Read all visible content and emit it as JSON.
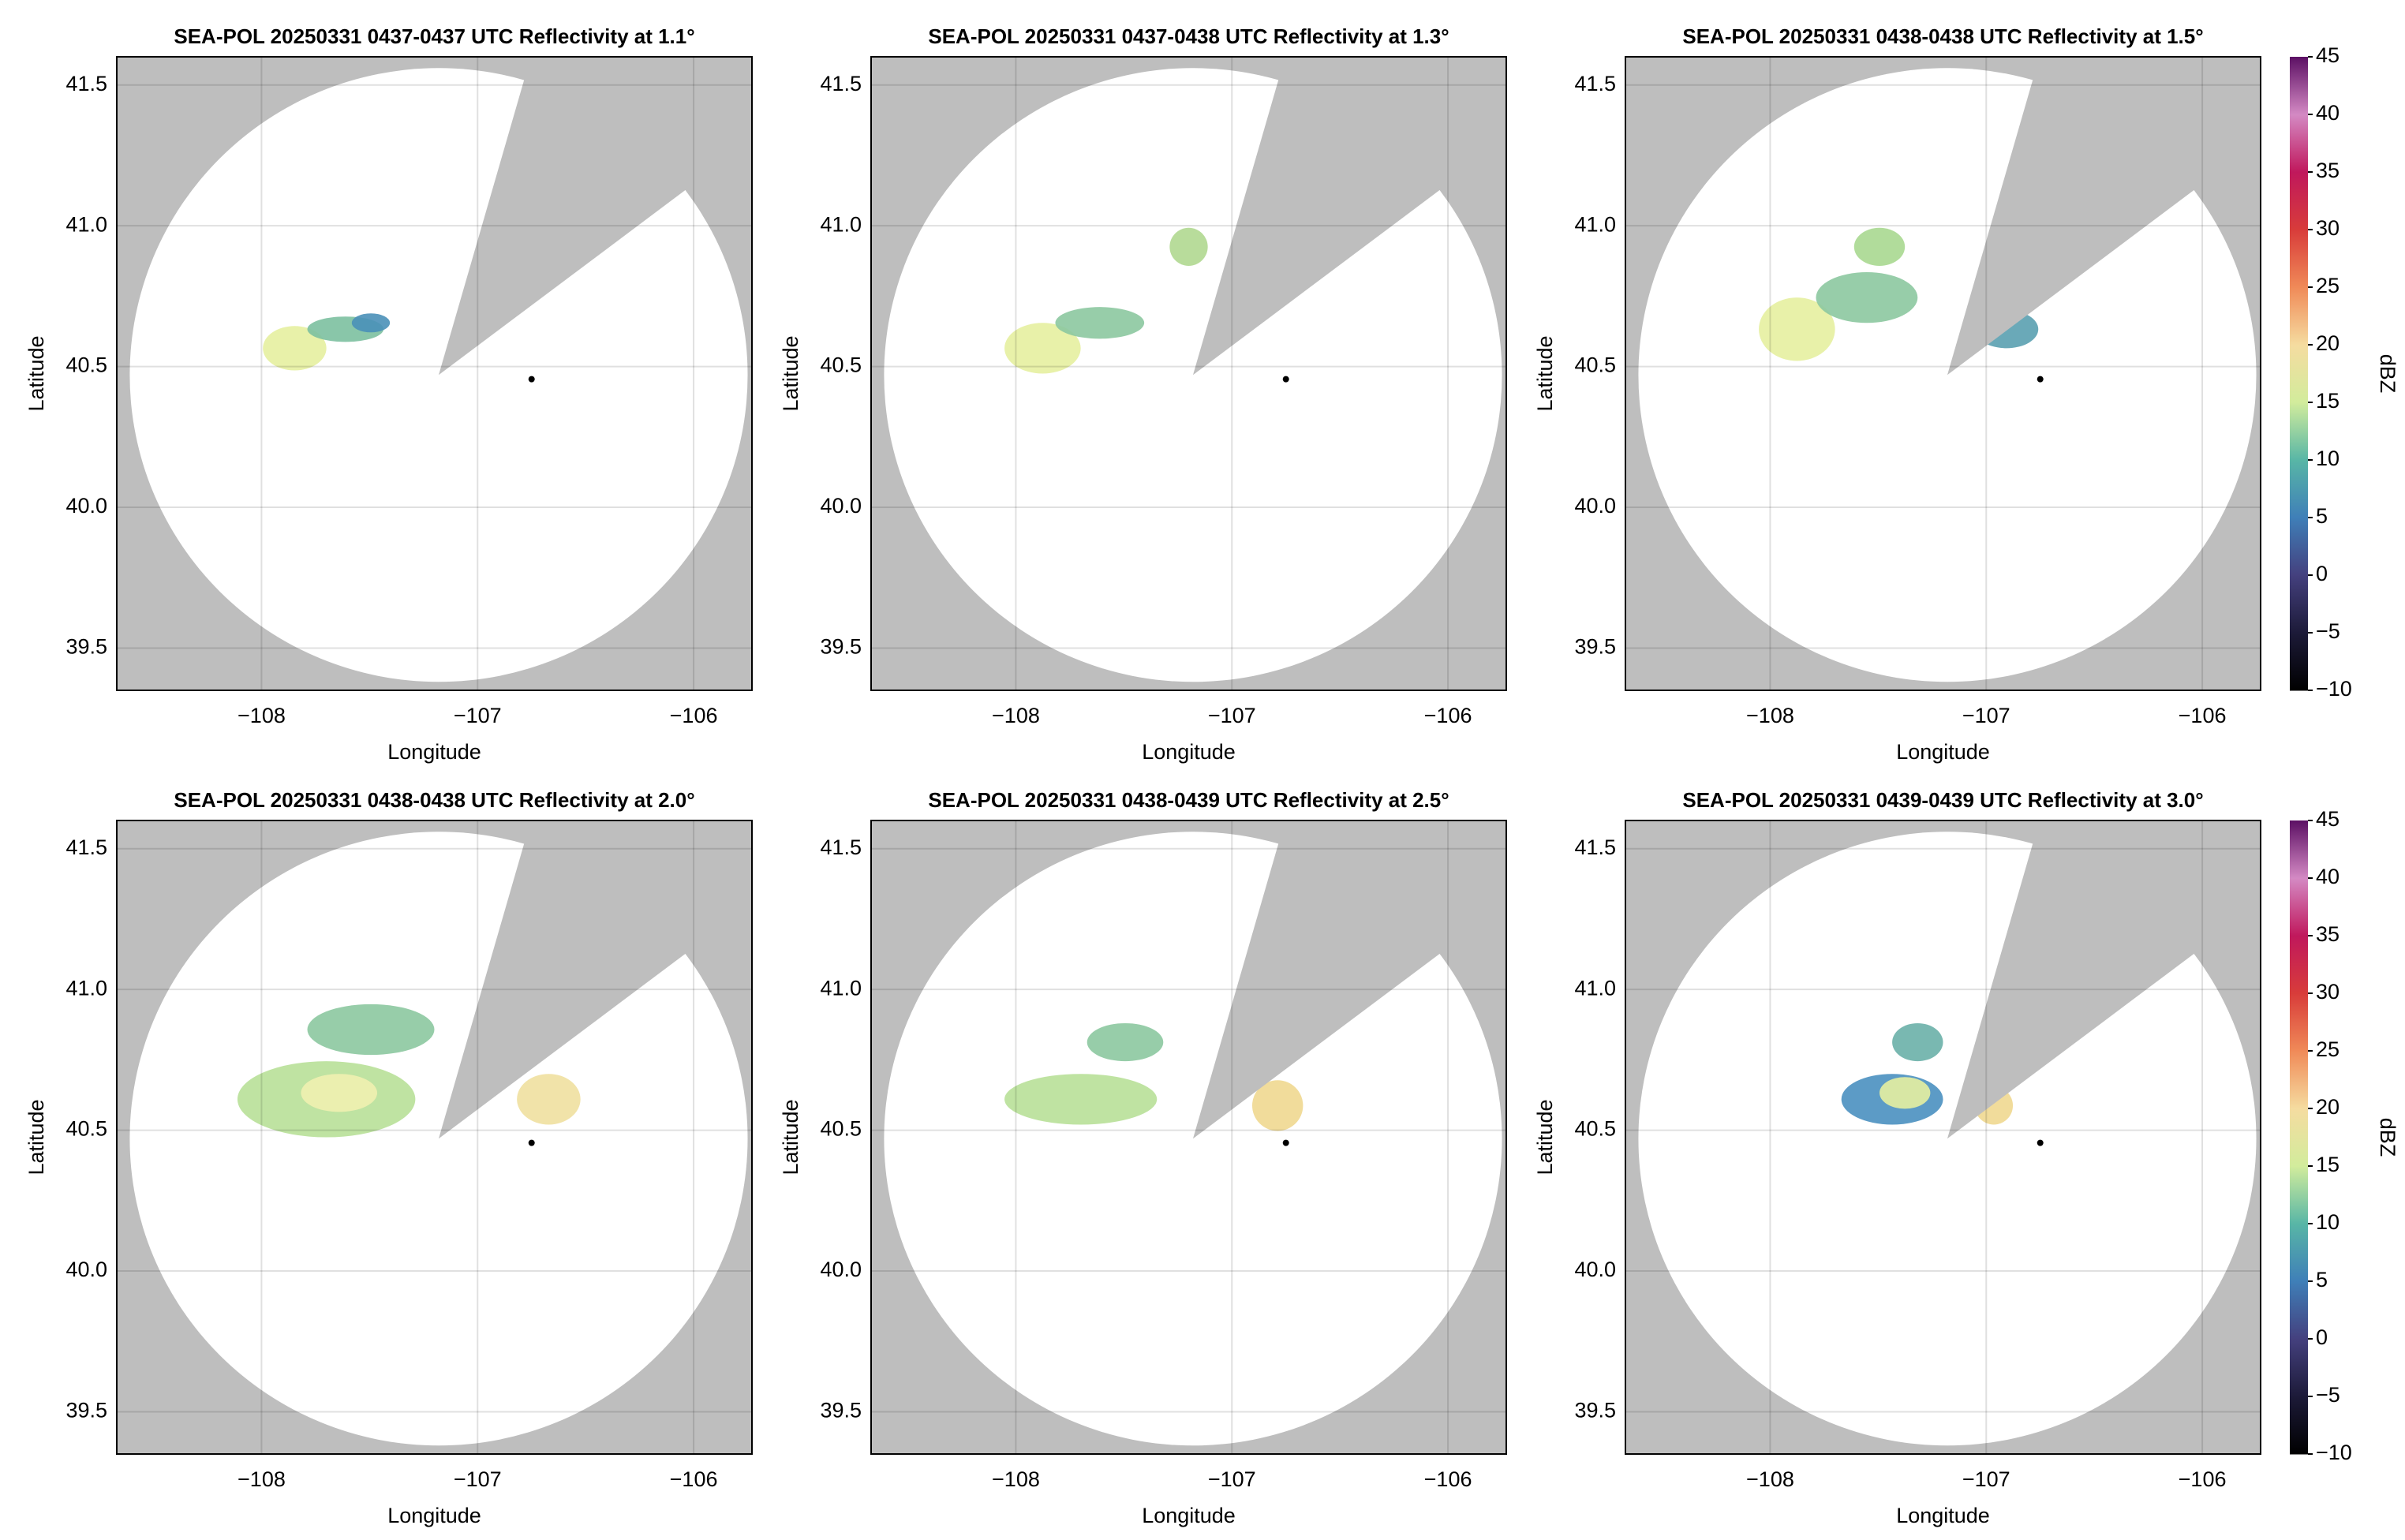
{
  "chart_data": [
    {
      "type": "radar",
      "title": "SEA-POL 20250331 0437-0437 UTC Reflectivity at 1.1°",
      "x_label": "Longitude",
      "y_label": "Latitude",
      "xlim": [
        -108.67,
        -105.73
      ],
      "ylim": [
        39.35,
        41.6
      ],
      "xticks": [
        {
          "value": -108,
          "label": "−108"
        },
        {
          "value": -107,
          "label": "−107"
        },
        {
          "value": -106,
          "label": "−106"
        }
      ],
      "yticks": [
        39.5,
        {
          "value": 40.0,
          "label": "40.0"
        },
        40.5,
        {
          "value": 41.0,
          "label": "41.0"
        },
        41.5
      ],
      "grid": true,
      "coverage": {
        "center": [
          -107.18,
          40.47
        ],
        "radius": [
          1.43,
          1.09
        ],
        "blocked_edges": [
          [
            -106.78,
            41.53
          ],
          [
            -106.05,
            41.12
          ]
        ]
      },
      "marker": [
        -106.75,
        40.455
      ]
    },
    {
      "type": "radar",
      "title": "SEA-POL 20250331 0437-0438 UTC Reflectivity at 1.3°",
      "x_label": "Longitude",
      "y_label": "Latitude",
      "xlim": [
        -108.67,
        -105.73
      ],
      "ylim": [
        39.35,
        41.6
      ],
      "xticks": [
        {
          "value": -108,
          "label": "−108"
        },
        {
          "value": -107,
          "label": "−107"
        },
        {
          "value": -106,
          "label": "−106"
        }
      ],
      "yticks": [
        39.5,
        {
          "value": 40.0,
          "label": "40.0"
        },
        40.5,
        {
          "value": 41.0,
          "label": "41.0"
        },
        41.5
      ],
      "grid": true,
      "coverage": {
        "center": [
          -107.18,
          40.47
        ],
        "radius": [
          1.43,
          1.09
        ],
        "blocked_edges": [
          [
            -106.78,
            41.53
          ],
          [
            -106.05,
            41.12
          ]
        ]
      },
      "marker": [
        -106.75,
        40.455
      ]
    },
    {
      "type": "radar",
      "title": "SEA-POL 20250331 0438-0438 UTC Reflectivity at 1.5°",
      "x_label": "Longitude",
      "y_label": "Latitude",
      "xlim": [
        -108.67,
        -105.73
      ],
      "ylim": [
        39.35,
        41.6
      ],
      "xticks": [
        {
          "value": -108,
          "label": "−108"
        },
        {
          "value": -107,
          "label": "−107"
        },
        {
          "value": -106,
          "label": "−106"
        }
      ],
      "yticks": [
        39.5,
        {
          "value": 40.0,
          "label": "40.0"
        },
        40.5,
        {
          "value": 41.0,
          "label": "41.0"
        },
        41.5
      ],
      "grid": true,
      "coverage": {
        "center": [
          -107.18,
          40.47
        ],
        "radius": [
          1.43,
          1.09
        ],
        "blocked_edges": [
          [
            -106.78,
            41.53
          ],
          [
            -106.05,
            41.12
          ]
        ]
      },
      "marker": [
        -106.75,
        40.455
      ],
      "colorbar": {
        "label": "dBZ",
        "lim": [
          -10,
          45
        ],
        "ticks": [
          {
            "value": -10,
            "label": "−10"
          },
          {
            "value": -5,
            "label": "−5"
          },
          0,
          5,
          10,
          15,
          20,
          25,
          30,
          35,
          40,
          45
        ],
        "colors": [
          "#000000",
          "#1c1a38",
          "#44407e",
          "#3f7fb8",
          "#58b6a6",
          "#d2ec9c",
          "#f5dca0",
          "#f08a58",
          "#d83c3a",
          "#c0185c",
          "#d48ac4",
          "#5c1064"
        ]
      }
    },
    {
      "type": "radar",
      "title": "SEA-POL 20250331 0438-0438 UTC Reflectivity at 2.0°",
      "x_label": "Longitude",
      "y_label": "Latitude",
      "xlim": [
        -108.67,
        -105.73
      ],
      "ylim": [
        39.35,
        41.6
      ],
      "xticks": [
        {
          "value": -108,
          "label": "−108"
        },
        {
          "value": -107,
          "label": "−107"
        },
        {
          "value": -106,
          "label": "−106"
        }
      ],
      "yticks": [
        39.5,
        {
          "value": 40.0,
          "label": "40.0"
        },
        40.5,
        {
          "value": 41.0,
          "label": "41.0"
        },
        41.5
      ],
      "grid": true,
      "coverage": {
        "center": [
          -107.18,
          40.47
        ],
        "radius": [
          1.43,
          1.09
        ],
        "blocked_edges": [
          [
            -106.78,
            41.53
          ],
          [
            -106.05,
            41.12
          ]
        ]
      },
      "marker": [
        -106.75,
        40.455
      ]
    },
    {
      "type": "radar",
      "title": "SEA-POL 20250331 0438-0439 UTC Reflectivity at 2.5°",
      "x_label": "Longitude",
      "y_label": "Latitude",
      "xlim": [
        -108.67,
        -105.73
      ],
      "ylim": [
        39.35,
        41.6
      ],
      "xticks": [
        {
          "value": -108,
          "label": "−108"
        },
        {
          "value": -107,
          "label": "−107"
        },
        {
          "value": -106,
          "label": "−106"
        }
      ],
      "yticks": [
        39.5,
        {
          "value": 40.0,
          "label": "40.0"
        },
        40.5,
        {
          "value": 41.0,
          "label": "41.0"
        },
        41.5
      ],
      "grid": true,
      "coverage": {
        "center": [
          -107.18,
          40.47
        ],
        "radius": [
          1.43,
          1.09
        ],
        "blocked_edges": [
          [
            -106.78,
            41.53
          ],
          [
            -106.05,
            41.12
          ]
        ]
      },
      "marker": [
        -106.75,
        40.455
      ]
    },
    {
      "type": "radar",
      "title": "SEA-POL 20250331 0439-0439 UTC Reflectivity at 3.0°",
      "x_label": "Longitude",
      "y_label": "Latitude",
      "xlim": [
        -108.67,
        -105.73
      ],
      "ylim": [
        39.35,
        41.6
      ],
      "xticks": [
        {
          "value": -108,
          "label": "−108"
        },
        {
          "value": -107,
          "label": "−107"
        },
        {
          "value": -106,
          "label": "−106"
        }
      ],
      "yticks": [
        39.5,
        {
          "value": 40.0,
          "label": "40.0"
        },
        40.5,
        {
          "value": 41.0,
          "label": "41.0"
        },
        41.5
      ],
      "grid": true,
      "coverage": {
        "center": [
          -107.18,
          40.47
        ],
        "radius": [
          1.43,
          1.09
        ],
        "blocked_edges": [
          [
            -106.78,
            41.53
          ],
          [
            -106.05,
            41.12
          ]
        ]
      },
      "marker": [
        -106.75,
        40.455
      ],
      "colorbar": {
        "label": "dBZ",
        "lim": [
          -10,
          45
        ],
        "ticks": [
          {
            "value": -10,
            "label": "−10"
          },
          {
            "value": -5,
            "label": "−5"
          },
          0,
          5,
          10,
          15,
          20,
          25,
          30,
          35,
          40,
          45
        ],
        "colors": [
          "#000000",
          "#1c1a38",
          "#44407e",
          "#3f7fb8",
          "#58b6a6",
          "#d2ec9c",
          "#f5dca0",
          "#f08a58",
          "#d83c3a",
          "#c0185c",
          "#d48ac4",
          "#5c1064"
        ]
      }
    }
  ]
}
